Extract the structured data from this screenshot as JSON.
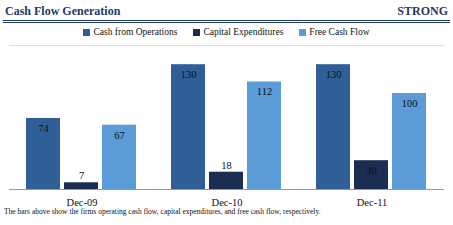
{
  "chart_data": {
    "type": "bar",
    "title": "Cash Flow Generation",
    "annotation": "STRONG",
    "caption": "The bars above show the firms operating cash flow, capital expenditures, and free cash flow, respectively.",
    "categories": [
      "Dec-09",
      "Dec-10",
      "Dec-11"
    ],
    "series": [
      {
        "name": "Cash from Operations",
        "color": "#2f5f96",
        "values": [
          74,
          130,
          130
        ]
      },
      {
        "name": "Capital Expenditures",
        "color": "#1b2d52",
        "values": [
          7,
          18,
          30
        ]
      },
      {
        "name": "Free Cash Flow",
        "color": "#5b9bd8",
        "values": [
          67,
          112,
          100
        ]
      }
    ],
    "ylim": [
      0,
      150
    ],
    "yticks": [],
    "grid": false,
    "legend": "top",
    "data_labels": true,
    "tick_labels": "x"
  }
}
